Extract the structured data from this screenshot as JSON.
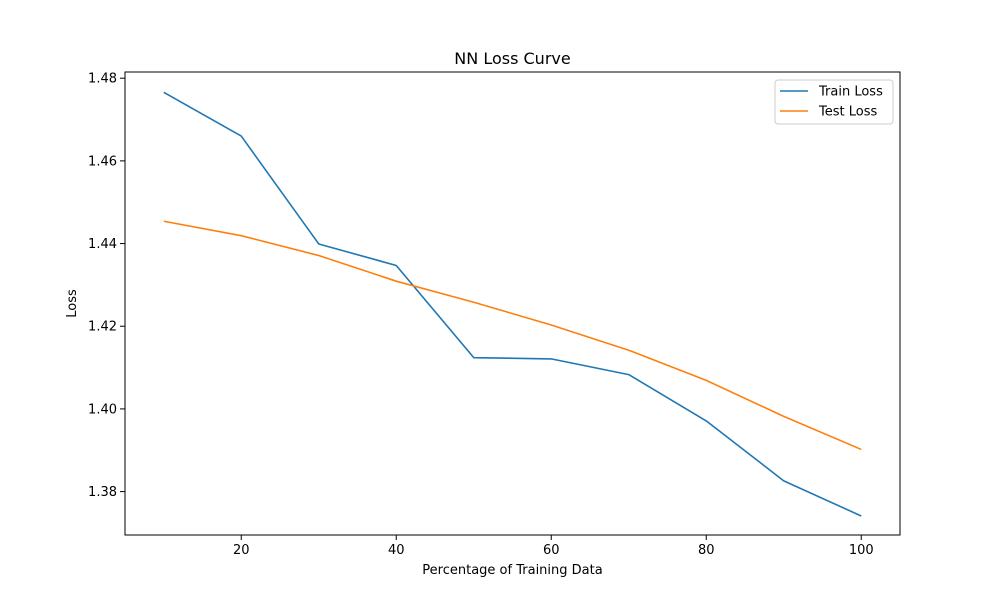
{
  "chart_data": {
    "type": "line",
    "title": "NN Loss Curve",
    "xlabel": "Percentage of Training Data",
    "ylabel": "Loss",
    "x": [
      10,
      20,
      30,
      40,
      50,
      60,
      70,
      80,
      90,
      100
    ],
    "xlim": [
      5,
      105
    ],
    "ylim": [
      1.3695,
      1.4815
    ],
    "xticks": [
      20,
      40,
      60,
      80,
      100
    ],
    "yticks": [
      1.38,
      1.4,
      1.42,
      1.44,
      1.46,
      1.48
    ],
    "ytick_labels": [
      "1.38",
      "1.40",
      "1.42",
      "1.44",
      "1.46",
      "1.48"
    ],
    "grid": false,
    "legend_position": "top-right",
    "series": [
      {
        "name": "Train Loss",
        "color": "#1f77b4",
        "values": [
          1.4766,
          1.466,
          1.4399,
          1.4347,
          1.4124,
          1.4121,
          1.4083,
          1.3971,
          1.3826,
          1.3741
        ]
      },
      {
        "name": "Test Loss",
        "color": "#ff7f0e",
        "values": [
          1.4454,
          1.4419,
          1.4371,
          1.4309,
          1.4258,
          1.4203,
          1.4142,
          1.4069,
          1.3982,
          1.3902
        ]
      }
    ]
  }
}
